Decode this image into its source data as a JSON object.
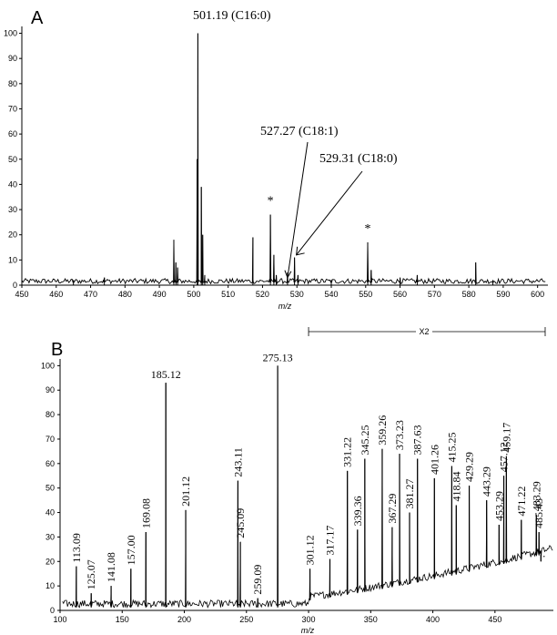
{
  "chart_data": [
    {
      "type": "line",
      "panel_label": "A",
      "xlabel": "m/z",
      "ylabel": "",
      "xlim": [
        450,
        603
      ],
      "ylim": [
        0,
        102
      ],
      "x_ticks": [
        450,
        460,
        470,
        480,
        490,
        500,
        510,
        520,
        530,
        540,
        550,
        560,
        570,
        580,
        590,
        600
      ],
      "y_ticks": [
        0,
        10,
        20,
        30,
        40,
        50,
        60,
        70,
        80,
        90,
        100
      ],
      "peaks": [
        {
          "x": 494.2,
          "y": 18
        },
        {
          "x": 494.8,
          "y": 9
        },
        {
          "x": 495.3,
          "y": 7
        },
        {
          "x": 501.19,
          "y": 100
        },
        {
          "x": 501.0,
          "y": 50
        },
        {
          "x": 502.2,
          "y": 39
        },
        {
          "x": 502.6,
          "y": 20
        },
        {
          "x": 503.2,
          "y": 4
        },
        {
          "x": 517.2,
          "y": 19
        },
        {
          "x": 522.3,
          "y": 28
        },
        {
          "x": 523.3,
          "y": 12
        },
        {
          "x": 524.0,
          "y": 4
        },
        {
          "x": 527.27,
          "y": 5
        },
        {
          "x": 529.31,
          "y": 11
        },
        {
          "x": 530.3,
          "y": 4
        },
        {
          "x": 550.6,
          "y": 17
        },
        {
          "x": 551.6,
          "y": 6
        },
        {
          "x": 565.0,
          "y": 4
        },
        {
          "x": 582.0,
          "y": 9
        },
        {
          "x": 474.0,
          "y": 3
        },
        {
          "x": 465.0,
          "y": 2
        },
        {
          "x": 540.0,
          "y": 2
        },
        {
          "x": 560.0,
          "y": 3
        },
        {
          "x": 587.0,
          "y": 2
        }
      ],
      "noise_level": 2,
      "annotations": [
        {
          "text": "501.19  (C16:0)",
          "x": 501.19,
          "arrow": false
        },
        {
          "text": "527.27  (C18:1)",
          "x": 527.27,
          "arrow": true
        },
        {
          "text": "529.31  (C18:0)",
          "x": 529.31,
          "arrow": true
        },
        {
          "text": "*",
          "x": 522.3
        },
        {
          "text": "*",
          "x": 550.6
        }
      ]
    },
    {
      "type": "line",
      "panel_label": "B",
      "xlabel": "m/z",
      "ylabel": "",
      "xlim": [
        100,
        497
      ],
      "ylim": [
        0,
        102
      ],
      "x_ticks": [
        100,
        150,
        200,
        250,
        300,
        350,
        400,
        450
      ],
      "y_ticks": [
        0,
        10,
        20,
        30,
        40,
        50,
        60,
        70,
        80,
        90,
        100
      ],
      "scale_indicator": {
        "text": "X2",
        "from": 300,
        "to": 497
      },
      "peaks": [
        {
          "x": 113.09,
          "y": 18,
          "label": "113.09"
        },
        {
          "x": 125.07,
          "y": 7,
          "label": "125.07"
        },
        {
          "x": 141.08,
          "y": 10,
          "label": "141.08"
        },
        {
          "x": 157.0,
          "y": 17,
          "label": "157.00"
        },
        {
          "x": 169.08,
          "y": 32,
          "label": "169.08"
        },
        {
          "x": 185.12,
          "y": 93,
          "label": "185.12"
        },
        {
          "x": 201.12,
          "y": 41,
          "label": "201.12"
        },
        {
          "x": 243.11,
          "y": 53,
          "label": "243.11"
        },
        {
          "x": 245.09,
          "y": 28,
          "label": "245.09"
        },
        {
          "x": 259.09,
          "y": 5,
          "label": "259.09"
        },
        {
          "x": 275.13,
          "y": 100,
          "label": "275.13"
        },
        {
          "x": 301.12,
          "y": 17,
          "label": "301.12"
        },
        {
          "x": 317.17,
          "y": 21,
          "label": "317.17"
        },
        {
          "x": 331.22,
          "y": 57,
          "label": "331.22"
        },
        {
          "x": 339.36,
          "y": 33,
          "label": "339.36"
        },
        {
          "x": 345.25,
          "y": 62,
          "label": "345.25"
        },
        {
          "x": 359.26,
          "y": 66,
          "label": "359.26"
        },
        {
          "x": 367.29,
          "y": 34,
          "label": "367.29"
        },
        {
          "x": 373.23,
          "y": 64,
          "label": "373.23"
        },
        {
          "x": 381.27,
          "y": 40,
          "label": "381.27"
        },
        {
          "x": 387.63,
          "y": 62,
          "label": "387.63"
        },
        {
          "x": 401.26,
          "y": 54,
          "label": "401.26"
        },
        {
          "x": 415.25,
          "y": 59,
          "label": "415.25"
        },
        {
          "x": 418.84,
          "y": 43,
          "label": "418.84"
        },
        {
          "x": 429.29,
          "y": 51,
          "label": "429.29"
        },
        {
          "x": 443.29,
          "y": 45,
          "label": "443.29"
        },
        {
          "x": 453.29,
          "y": 35,
          "label": "453.29"
        },
        {
          "x": 457.12,
          "y": 55,
          "label": "457.12"
        },
        {
          "x": 459.17,
          "y": 63,
          "label": "459.17"
        },
        {
          "x": 471.22,
          "y": 37,
          "label": "471.22"
        },
        {
          "x": 483.29,
          "y": 39,
          "label": "483.29"
        },
        {
          "x": 485.43,
          "y": 32,
          "label": "485.43"
        },
        {
          "x": 487.0,
          "y": 20,
          "label": "."
        }
      ],
      "baseline_rise": {
        "from": 300,
        "to": 497,
        "start": 4,
        "end": 24
      },
      "noise_level": 3
    }
  ]
}
